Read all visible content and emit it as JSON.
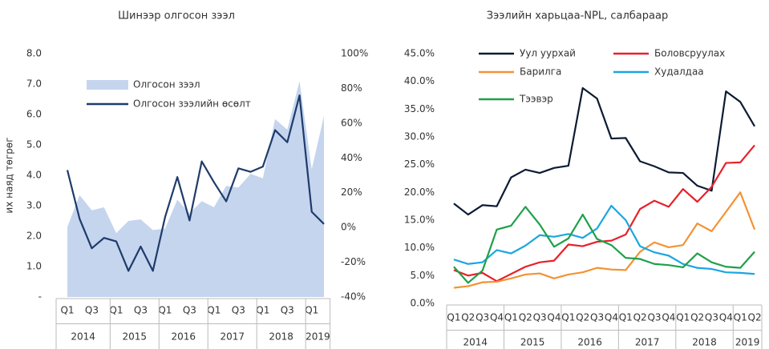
{
  "chart_data": [
    {
      "type": "combo",
      "title": "Шинээр олгосон зээл",
      "y_label": "их наяд төгрөг",
      "categories": [
        "Q1",
        null,
        "Q3",
        null,
        "Q1",
        null,
        "Q3",
        null,
        "Q1",
        null,
        "Q3",
        null,
        "Q1",
        null,
        "Q3",
        null,
        "Q1",
        null,
        "Q3",
        null,
        "Q1",
        null
      ],
      "groups": [
        "2014",
        "2015",
        "2016",
        "2017",
        "2018",
        "2019"
      ],
      "series": [
        {
          "name": "Олгосон зээл",
          "type": "area",
          "color": "#c5d5ee",
          "values": [
            2.3,
            3.35,
            2.85,
            2.95,
            2.1,
            2.5,
            2.55,
            2.2,
            2.25,
            3.2,
            2.75,
            3.15,
            2.95,
            3.65,
            3.6,
            4.05,
            3.9,
            5.85,
            5.5,
            7.1,
            4.2,
            5.95
          ]
        },
        {
          "name": "Олгосон зээлийн өсөлт",
          "type": "line",
          "axis": "y2",
          "color": "#1f3b6b",
          "values": [
            33,
            5,
            -12,
            -6,
            -8,
            -25,
            -11,
            -25,
            6,
            29,
            4,
            38,
            26,
            15,
            34,
            32,
            35,
            56,
            49,
            76,
            9,
            2
          ]
        }
      ],
      "ylim": [
        0,
        8
      ],
      "yticks": [
        {
          "value": 0,
          "label": "-"
        },
        {
          "value": 1,
          "label": "1.0"
        },
        {
          "value": 2,
          "label": "2.0"
        },
        {
          "value": 3,
          "label": "3.0"
        },
        {
          "value": 4,
          "label": "4.0"
        },
        {
          "value": 5,
          "label": "5.0"
        },
        {
          "value": 6,
          "label": "6.0"
        },
        {
          "value": 7,
          "label": "7.0"
        },
        {
          "value": 8,
          "label": "8.0"
        }
      ],
      "y2lim": [
        -40,
        100
      ],
      "y2ticks": [
        {
          "value": -40,
          "label": "-40%"
        },
        {
          "value": -20,
          "label": "-20%"
        },
        {
          "value": 0,
          "label": "0%"
        },
        {
          "value": 20,
          "label": "20%"
        },
        {
          "value": 40,
          "label": "40%"
        },
        {
          "value": 60,
          "label": "60%"
        },
        {
          "value": 80,
          "label": "80%"
        },
        {
          "value": 100,
          "label": "100%"
        }
      ]
    },
    {
      "type": "line",
      "title": "Зээлийн харьцаа-NPL, салбараар",
      "categories": [
        "Q1",
        "Q2",
        "Q3",
        "Q4",
        "Q1",
        "Q2",
        "Q3",
        "Q4",
        "Q1",
        "Q2",
        "Q3",
        "Q4",
        "Q1",
        "Q2",
        "Q3",
        "Q4",
        "Q1",
        "Q2",
        "Q3",
        "Q4",
        "Q1",
        "Q2"
      ],
      "groups": [
        "2014",
        "2015",
        "2016",
        "2017",
        "2018",
        "2019"
      ],
      "series": [
        {
          "name": "Уул уурхай",
          "color": "#0d1b33",
          "values": [
            18,
            16,
            17.7,
            17.5,
            22.7,
            24.1,
            23.5,
            24.4,
            24.8,
            38.8,
            36.9,
            29.7,
            29.8,
            25.6,
            24.7,
            23.6,
            23.5,
            21.2,
            20.3,
            38.2,
            36.3,
            31.9
          ]
        },
        {
          "name": "Боловсруулах",
          "color": "#e8202a",
          "values": [
            6,
            5,
            5.5,
            4,
            5.3,
            6.6,
            7.4,
            7.7,
            10.6,
            10.3,
            11.1,
            11.3,
            12.4,
            17,
            18.5,
            17.4,
            20.6,
            18.3,
            21,
            25.3,
            25.4,
            28.5
          ]
        },
        {
          "name": "Барилга",
          "color": "#f39233",
          "values": [
            2.8,
            3.1,
            3.8,
            3.9,
            4.5,
            5.2,
            5.4,
            4.5,
            5.2,
            5.6,
            6.4,
            6.1,
            6,
            9.3,
            11,
            10.1,
            10.5,
            14.4,
            13,
            16.5,
            20,
            13.3
          ]
        },
        {
          "name": "Худалдаа",
          "color": "#1ba6e0",
          "values": [
            7.9,
            7.1,
            7.4,
            9.6,
            9,
            10.4,
            12.3,
            12,
            12.5,
            11.8,
            13.5,
            17.6,
            15,
            10.3,
            9.2,
            8.6,
            7.1,
            6.4,
            6.2,
            5.6,
            5.5,
            5.3
          ]
        },
        {
          "name": "Тээвэр",
          "color": "#1fa049",
          "values": [
            6.6,
            3.7,
            5.9,
            13.3,
            14,
            17.4,
            14.2,
            10.2,
            11.7,
            16,
            11.6,
            10.5,
            8.2,
            8,
            7.1,
            6.9,
            6.5,
            9,
            7.4,
            6.6,
            6.4,
            9.3
          ]
        }
      ],
      "ylim": [
        0,
        45
      ],
      "yticks": [
        {
          "value": 0,
          "label": "0.0%"
        },
        {
          "value": 5,
          "label": "5.0%"
        },
        {
          "value": 10,
          "label": "10.0%"
        },
        {
          "value": 15,
          "label": "15.0%"
        },
        {
          "value": 20,
          "label": "20.0%"
        },
        {
          "value": 25,
          "label": "25.0%"
        },
        {
          "value": 30,
          "label": "30.0%"
        },
        {
          "value": 35,
          "label": "35.0%"
        },
        {
          "value": 40,
          "label": "40.0%"
        },
        {
          "value": 45,
          "label": "45.0%"
        }
      ]
    }
  ]
}
